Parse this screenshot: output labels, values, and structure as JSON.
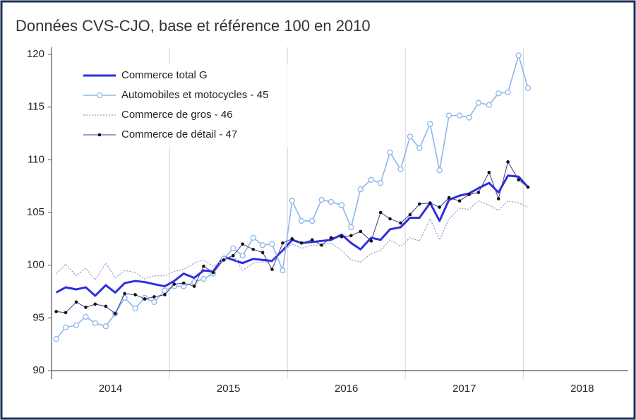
{
  "chart_data": {
    "type": "line",
    "title": "Données CVS-CJO, base et référence 100 en 2010",
    "x": [
      2014.04,
      2014.12,
      2014.21,
      2014.29,
      2014.37,
      2014.46,
      2014.54,
      2014.62,
      2014.71,
      2014.79,
      2014.87,
      2014.96,
      2015.04,
      2015.12,
      2015.21,
      2015.29,
      2015.37,
      2015.46,
      2015.54,
      2015.62,
      2015.71,
      2015.79,
      2015.87,
      2015.96,
      2016.04,
      2016.12,
      2016.21,
      2016.29,
      2016.37,
      2016.46,
      2016.54,
      2016.62,
      2016.71,
      2016.79,
      2016.87,
      2016.96,
      2017.04,
      2017.12,
      2017.21,
      2017.29,
      2017.37,
      2017.46,
      2017.54,
      2017.62,
      2017.71,
      2017.79,
      2017.87,
      2017.96,
      2018.04
    ],
    "series": [
      {
        "name": "Commerce total G",
        "color": "#2e2ee0",
        "line": "bold",
        "marker": "none",
        "values": [
          97.4,
          97.9,
          97.7,
          97.9,
          97.1,
          98.1,
          97.4,
          98.3,
          98.5,
          98.4,
          98.2,
          98.0,
          98.5,
          99.2,
          98.8,
          99.5,
          99.4,
          100.8,
          100.5,
          100.2,
          100.6,
          100.5,
          100.4,
          101.4,
          102.4,
          102.1,
          102.2,
          102.3,
          102.4,
          102.9,
          102.1,
          101.5,
          102.6,
          102.4,
          103.4,
          103.6,
          104.5,
          104.5,
          105.9,
          104.2,
          106.2,
          106.6,
          106.8,
          107.3,
          107.8,
          106.9,
          108.5,
          108.4,
          107.4
        ]
      },
      {
        "name": "Automobiles et motocycles - 45",
        "color": "#8db6ec",
        "line": "solid",
        "marker": "circle",
        "values": [
          93.0,
          94.1,
          94.3,
          95.1,
          94.5,
          94.2,
          95.4,
          96.9,
          95.9,
          96.9,
          96.5,
          97.6,
          98.0,
          98.0,
          98.4,
          98.7,
          99.2,
          100.6,
          101.6,
          100.9,
          102.6,
          101.9,
          102.0,
          99.5,
          106.1,
          104.2,
          104.2,
          106.2,
          106.0,
          105.7,
          103.6,
          107.2,
          108.1,
          107.8,
          110.7,
          109.1,
          112.2,
          111.1,
          113.4,
          109.0,
          114.2,
          114.2,
          114.0,
          115.4,
          115.2,
          116.3,
          116.4,
          119.9,
          116.8
        ]
      },
      {
        "name": "Commerce de gros - 46",
        "color": "#9a9ad6",
        "line": "dotted",
        "marker": "none",
        "values": [
          99.2,
          100.1,
          99.0,
          99.7,
          98.6,
          100.2,
          98.8,
          99.5,
          99.3,
          98.7,
          99.0,
          99.0,
          99.4,
          99.6,
          100.2,
          100.5,
          99.9,
          100.5,
          101.0,
          99.5,
          100.2,
          100.3,
          100.3,
          101.3,
          102.0,
          101.6,
          101.9,
          101.9,
          102.1,
          101.4,
          100.5,
          100.3,
          101.1,
          101.4,
          102.4,
          101.8,
          102.6,
          102.3,
          104.4,
          102.4,
          104.4,
          105.4,
          105.3,
          106.1,
          105.7,
          105.2,
          106.1,
          105.9,
          105.5
        ]
      },
      {
        "name": "Commerce de détail - 47",
        "color": "#3a3a8c",
        "line": "thin",
        "marker": "dot",
        "values": [
          95.6,
          95.5,
          96.5,
          96.0,
          96.3,
          96.1,
          95.4,
          97.3,
          97.2,
          96.8,
          97.0,
          97.2,
          98.2,
          98.3,
          98.0,
          99.9,
          99.3,
          100.5,
          100.9,
          102.0,
          101.5,
          101.2,
          99.6,
          102.1,
          102.5,
          102.1,
          102.4,
          101.9,
          102.6,
          102.7,
          102.8,
          103.2,
          102.3,
          105.0,
          104.4,
          104.0,
          104.8,
          105.8,
          105.9,
          105.5,
          106.4,
          106.1,
          106.7,
          106.9,
          108.8,
          106.3,
          109.8,
          108.1,
          107.4
        ]
      }
    ],
    "xlim": [
      2014,
      2018.89
    ],
    "xticks": [
      {
        "value": 2014.5,
        "label": "2014"
      },
      {
        "value": 2015.5,
        "label": "2015"
      },
      {
        "value": 2016.5,
        "label": "2016"
      },
      {
        "value": 2017.5,
        "label": "2017"
      },
      {
        "value": 2018.5,
        "label": "2018"
      }
    ],
    "xgrid": [
      2015,
      2016,
      2017,
      2018
    ],
    "ylim": [
      90,
      120
    ],
    "yticks": [
      90,
      95,
      100,
      105,
      110,
      115,
      120
    ],
    "legend": "upper-left"
  }
}
